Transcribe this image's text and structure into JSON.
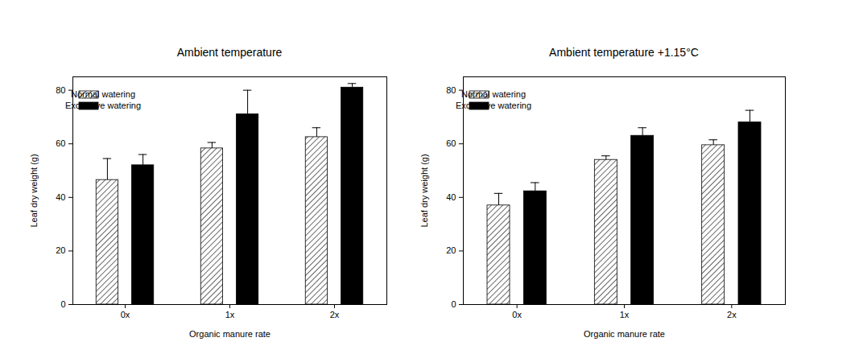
{
  "chart_data": [
    {
      "type": "bar",
      "title": "Ambient temperature",
      "x_label": "Organic manure rate",
      "y_label": "Leaf dry weight (g)",
      "categories": [
        "0x",
        "1x",
        "2x"
      ],
      "series": [
        {
          "name": "Normal watering",
          "color": "#000000",
          "line_style": "hatched",
          "values": [
            46.5,
            58.3,
            62.5
          ],
          "error": [
            8,
            2.2,
            3.5
          ]
        },
        {
          "name": "Excessive watering",
          "color": "#000000",
          "values": [
            52,
            71,
            81
          ],
          "error": [
            4,
            9,
            1.5
          ]
        }
      ],
      "ylim": [
        0,
        85
      ],
      "yticks": [
        0,
        20,
        40,
        60,
        80
      ],
      "legend": "top-left"
    },
    {
      "type": "bar",
      "title": "Ambient temperature +1.15°C",
      "x_label": "Organic manure rate",
      "y_label": "Leaf dry weight (g)",
      "categories": [
        "0x",
        "1x",
        "2x"
      ],
      "series": [
        {
          "name": "Normal watering",
          "color": "#000000",
          "line_style": "hatched",
          "values": [
            37,
            54,
            59.5
          ],
          "error": [
            4.5,
            1.5,
            2
          ]
        },
        {
          "name": "Excessive watering",
          "color": "#000000",
          "values": [
            42.3,
            63,
            68
          ],
          "error": [
            3.2,
            3,
            4.5
          ]
        }
      ],
      "ylim": [
        0,
        85
      ],
      "yticks": [
        0,
        20,
        40,
        60,
        80
      ],
      "legend": "top-left"
    }
  ]
}
